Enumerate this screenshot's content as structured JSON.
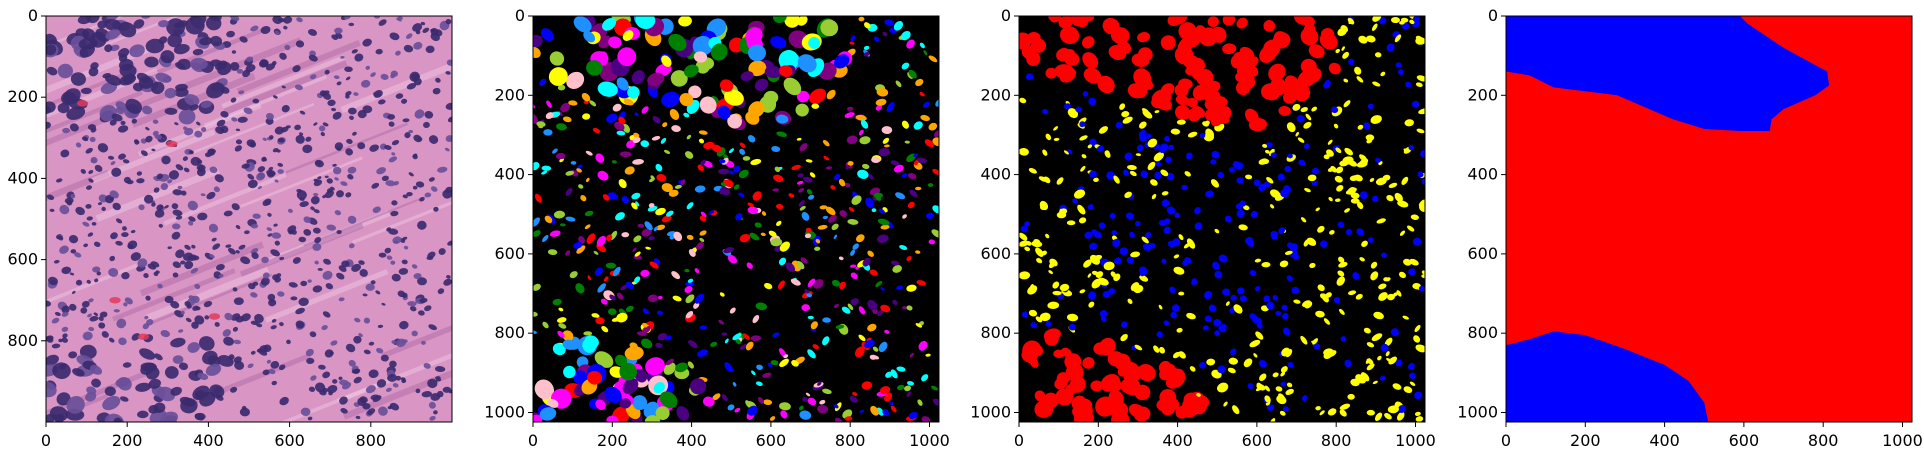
{
  "panels": [
    {
      "id": "he_image",
      "kind": "histology-image",
      "xlim": [
        0,
        1000
      ],
      "ylim_inverted": [
        1000,
        0
      ],
      "xticks": [
        0,
        200,
        400,
        600,
        800
      ],
      "yticks": [
        0,
        200,
        400,
        600,
        800
      ],
      "colors": {
        "stroma": "#d995c4",
        "stroma_dark": "#b06aa8",
        "nucleus": "#3b2a6e",
        "nucleus_light": "#6a4f9a",
        "rbc": "#e03a5a"
      }
    },
    {
      "id": "instance_mask",
      "kind": "instance-segmentation",
      "xlim": [
        0,
        1024
      ],
      "ylim_inverted": [
        1024,
        0
      ],
      "xticks": [
        0,
        200,
        400,
        600,
        800,
        1000
      ],
      "yticks": [
        0,
        200,
        400,
        600,
        800,
        1000
      ],
      "colors": {
        "background": "#000000",
        "palette": [
          "#ff0000",
          "#ffff00",
          "#0000ff",
          "#00ffff",
          "#ff00ff",
          "#ffa500",
          "#ffc0cb",
          "#008000",
          "#9acd32",
          "#4b0082",
          "#800080",
          "#1e90ff"
        ]
      }
    },
    {
      "id": "class_mask",
      "kind": "semantic-nuclei",
      "xlim": [
        0,
        1024
      ],
      "ylim_inverted": [
        1024,
        0
      ],
      "xticks": [
        0,
        200,
        400,
        600,
        800,
        1000
      ],
      "yticks": [
        0,
        200,
        400,
        600,
        800,
        1000
      ],
      "colors": {
        "background": "#000000",
        "tumor": "#ff0000",
        "lymphocyte": "#0000ff",
        "stromal": "#ffff00"
      }
    },
    {
      "id": "tissue_mask",
      "kind": "region-map",
      "xlim": [
        0,
        1024
      ],
      "ylim_inverted": [
        1024,
        0
      ],
      "xticks": [
        0,
        200,
        400,
        600,
        800,
        1000
      ],
      "yticks": [
        0,
        200,
        400,
        600,
        800,
        1000
      ],
      "colors": {
        "stroma_region": "#ff0000",
        "tumor_region": "#0000ff"
      }
    }
  ]
}
